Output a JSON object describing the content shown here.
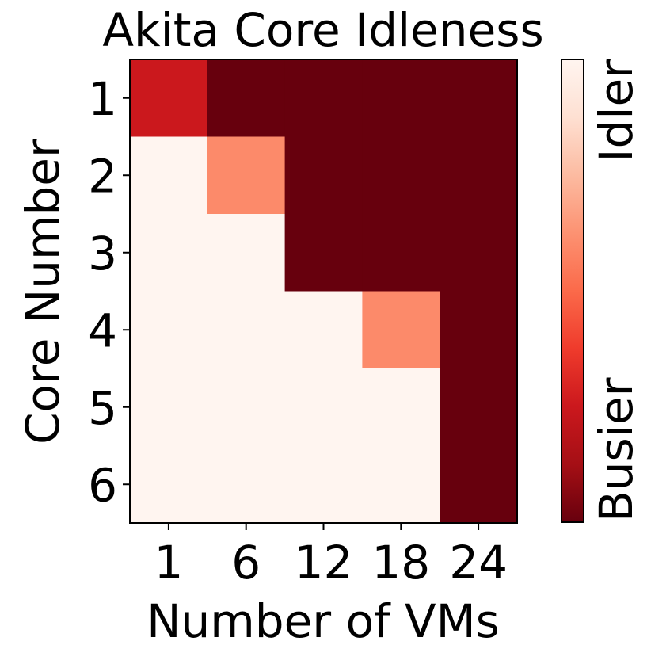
{
  "chart_data": {
    "type": "heatmap",
    "title": "Akita Core Idleness",
    "xlabel": "Number of VMs",
    "ylabel": "Core Number",
    "x_categories": [
      "1",
      "6",
      "12",
      "18",
      "24"
    ],
    "y_categories": [
      "1",
      "2",
      "3",
      "4",
      "5",
      "6"
    ],
    "values": [
      [
        0.25,
        0.0,
        0.0,
        0.0,
        0.0
      ],
      [
        1.0,
        0.6,
        0.0,
        0.0,
        0.0
      ],
      [
        1.0,
        1.0,
        0.0,
        0.0,
        0.0
      ],
      [
        1.0,
        1.0,
        1.0,
        0.6,
        0.0
      ],
      [
        1.0,
        1.0,
        1.0,
        1.0,
        0.0
      ],
      [
        1.0,
        1.0,
        1.0,
        1.0,
        0.0
      ]
    ],
    "value_range": [
      0,
      1
    ],
    "colormap": "Reds_r",
    "colorbar": {
      "top_label": "Idler",
      "bottom_label": "Busier"
    },
    "colors": {
      "idle": "#fff5f0",
      "busy": "#67000d"
    },
    "grid": false
  }
}
